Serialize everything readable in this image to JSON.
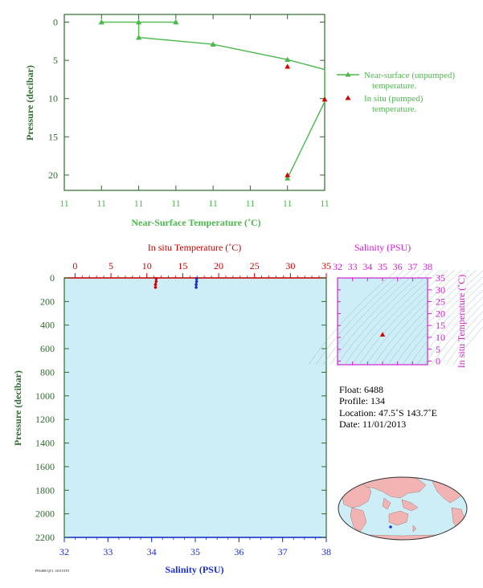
{
  "colors": {
    "green": "#4cb84c",
    "axis_green": "#2f6b2f",
    "red": "#d40000",
    "blue": "#1a2fd0",
    "magenta": "#d21ed2",
    "ocean": "#cdeef7",
    "land": "#f2b3b3"
  },
  "chart_data": [
    {
      "type": "line",
      "xlabel": "Near-Surface Temperature (˚C)",
      "ylabel": "Pressure (decibar)",
      "x_ticks": [
        "11",
        "11",
        "11",
        "11",
        "11",
        "11",
        "11",
        "11"
      ],
      "y_ticks": [
        0,
        5,
        10,
        15,
        20
      ],
      "ylim": [
        22,
        -1
      ],
      "y_inverted": true,
      "grid": false,
      "legend_position": "right",
      "series": [
        {
          "name": "Near-surface (unpumped) temperature.",
          "marker": "triangle",
          "points": [
            {
              "tick": 1.0,
              "p": 0.0
            },
            {
              "tick": 2.0,
              "p": 0.0
            },
            {
              "tick": 3.0,
              "p": 0.0
            },
            {
              "tick": 2.0,
              "p": 0.0
            },
            {
              "tick": 2.0,
              "p": 2.0
            },
            {
              "tick": 4.0,
              "p": 2.9
            },
            {
              "tick": 6.0,
              "p": 4.9
            },
            {
              "tick": 7.0,
              "p": 6.2
            },
            {
              "tick": 7.0,
              "p": 10.4
            },
            {
              "tick": 6.0,
              "p": 20.4
            }
          ],
          "marked_points": [
            0,
            1,
            2,
            4,
            5,
            6,
            9
          ]
        },
        {
          "name": "In situ (pumped) temperature.",
          "marker": "triangle",
          "points": [
            {
              "tick": 6.0,
              "p": 5.8
            },
            {
              "tick": 7.0,
              "p": 10.1
            },
            {
              "tick": 6.0,
              "p": 20.0
            }
          ]
        }
      ]
    },
    {
      "type": "line",
      "title_top": "In situ Temperature (˚C)",
      "xlabel": "Salinity (PSU)",
      "ylabel": "Pressure (decibar)",
      "temperature_ticks": [
        0,
        5,
        10,
        15,
        20,
        25,
        30,
        35
      ],
      "salinity_ticks": [
        32,
        33,
        34,
        35,
        36,
        37,
        38
      ],
      "pressure_ticks": [
        0,
        200,
        400,
        600,
        800,
        1000,
        1200,
        1400,
        1600,
        1800,
        2000,
        2200
      ],
      "temperature_range": [
        -1.5,
        35
      ],
      "salinity_range": [
        32,
        38
      ],
      "pressure_range": [
        2200,
        0
      ],
      "series": [
        {
          "variable": "temperature",
          "color": "red",
          "points": [
            {
              "value": 11.3,
              "p": 5
            },
            {
              "value": 11.3,
              "p": 30
            },
            {
              "value": 11.2,
              "p": 55
            },
            {
              "value": 11.2,
              "p": 80
            }
          ]
        },
        {
          "variable": "salinity",
          "color": "blue",
          "points": [
            {
              "value": 35.03,
              "p": 5
            },
            {
              "value": 35.03,
              "p": 30
            },
            {
              "value": 35.02,
              "p": 55
            },
            {
              "value": 35.02,
              "p": 80
            }
          ]
        }
      ]
    },
    {
      "type": "scatter",
      "xlabel": "Salinity (PSU)",
      "ylabel": "In situ Temperature (˚C)",
      "x_ticks": [
        32,
        33,
        34,
        35,
        36,
        37,
        38
      ],
      "y_ticks": [
        0,
        5,
        10,
        15,
        20,
        25,
        30,
        35
      ],
      "xlim": [
        32,
        38
      ],
      "ylim": [
        -1.5,
        35
      ],
      "points": [
        {
          "s": 35.0,
          "t": 11.2
        }
      ]
    }
  ],
  "float_info": {
    "float": "Float:  6488",
    "profile": "Profile:  134",
    "location": "Location:  47.5˚S  143.7˚E",
    "date": "Date:  11/01/2013"
  },
  "footer": "P06488/QC1 130110T0"
}
